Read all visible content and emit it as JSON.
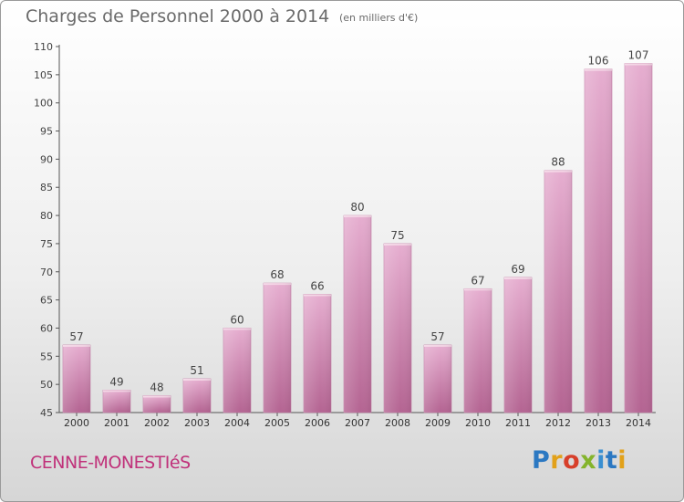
{
  "header": {
    "title": "Charges de Personnel 2000 à 2014",
    "subtitle": "(en milliers d'€)"
  },
  "footer": {
    "commune": "CENNE-MONESTIéS",
    "logo_letters": [
      "P",
      "r",
      "o",
      "x",
      "i",
      "t",
      "i"
    ]
  },
  "colors": {
    "bar": "#d486b0",
    "bar_light": "#e8b4d0",
    "bar_dark": "#b86896",
    "accent": "#c0317a"
  },
  "chart_data": {
    "type": "bar",
    "title": "Charges de Personnel 2000 à 2014",
    "subtitle": "(en milliers d'€)",
    "xlabel": "",
    "ylabel": "",
    "categories": [
      "2000",
      "2001",
      "2002",
      "2003",
      "2004",
      "2005",
      "2006",
      "2007",
      "2008",
      "2009",
      "2010",
      "2011",
      "2012",
      "2013",
      "2014"
    ],
    "values": [
      57,
      49,
      48,
      51,
      60,
      68,
      66,
      80,
      75,
      57,
      67,
      69,
      88,
      106,
      107
    ],
    "ylim": [
      45,
      110
    ],
    "yticks": [
      45,
      50,
      55,
      60,
      65,
      70,
      75,
      80,
      85,
      90,
      95,
      100,
      105,
      110
    ],
    "grid": false,
    "data_labels": true
  }
}
